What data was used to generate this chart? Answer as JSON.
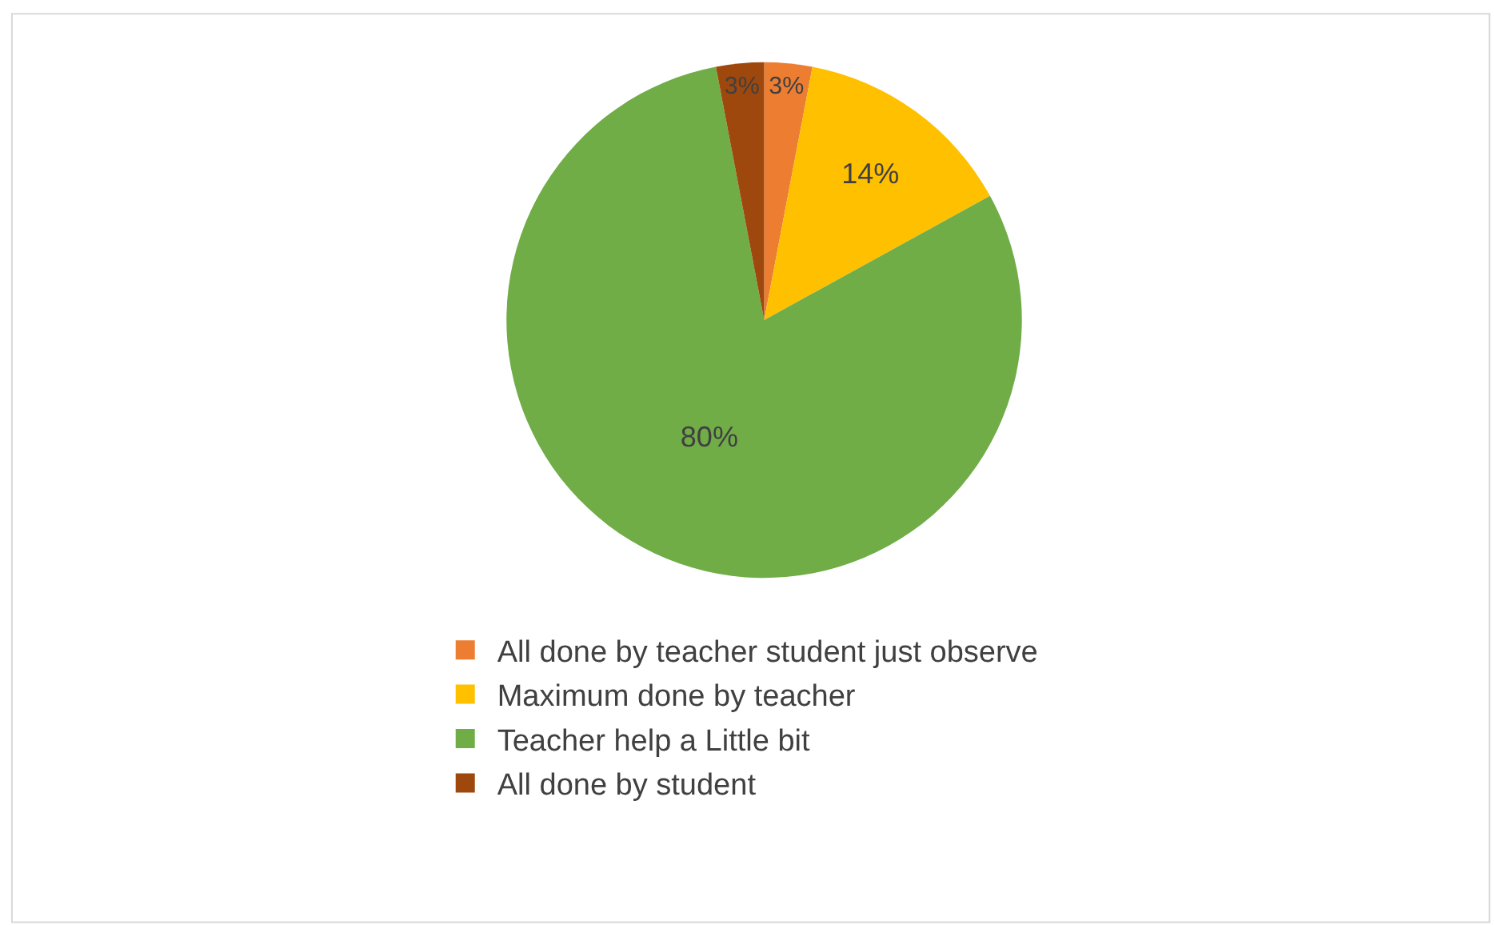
{
  "chart_data": {
    "type": "pie",
    "categories": [
      "All done by teacher student just observe",
      "Maximum done by teacher",
      "Teacher help a Little bit",
      "All done by student"
    ],
    "values": [
      3,
      14,
      80,
      3
    ],
    "colors": [
      "#ed7d31",
      "#ffc000",
      "#70ad47",
      "#9e480e"
    ],
    "value_labels": [
      "3%",
      "14%",
      "80%",
      "3%"
    ],
    "legend": "bottom"
  }
}
